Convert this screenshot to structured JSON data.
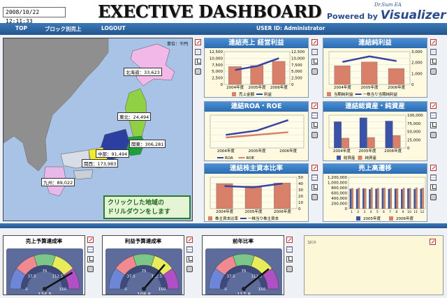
{
  "header": {
    "datetime": "2008/10/22 12:11:33",
    "title": "EXECTIVE DASHBOARD",
    "brand_product": "Dr.Sum EA",
    "brand_prefix": "Powered by",
    "brand_name": "Visualizer"
  },
  "nav": {
    "top": "TOP",
    "block": "ブロック別売上",
    "logout": "LOGOUT",
    "user": "USER ID: Administrator"
  },
  "map": {
    "unit": "単位：千円",
    "regions": [
      {
        "label": "北海道：33,623"
      },
      {
        "label": "東北：24,494"
      },
      {
        "label": "関東：306,281"
      },
      {
        "label": "中部：91,494"
      },
      {
        "label": "関西：173,983"
      },
      {
        "label": "九州：89,022"
      }
    ],
    "drill_line1": "クリックした地域の",
    "drill_line2": "ドリルダウンをします"
  },
  "colors": {
    "map_sea": "#a9c3e6",
    "panel_bg": "#fffadf",
    "title_blue": "#2c6bb0",
    "bar_orange": "#d9806a",
    "bar_blue": "#3a52a8",
    "line_blue": "#3844a0",
    "line_orange": "#d9806a"
  },
  "chart_data": [
    {
      "type": "bar",
      "title": "連結売上 経営利益",
      "categories": [
        "2004年度",
        "2005年度",
        "2006年度"
      ],
      "series": [
        {
          "name": "売上金額",
          "type": "bar",
          "values": [
            6800,
            7200,
            8800
          ]
        },
        {
          "name": "利益",
          "type": "line",
          "values": [
            5500,
            7000,
            10000
          ]
        }
      ],
      "left_ticks": [
        "12,500",
        "10,000",
        "7,500",
        "5,000",
        "2,500",
        "0"
      ],
      "right_ticks": [
        "12,500",
        "10,000",
        "7,500",
        "5,000",
        "2,500",
        "0"
      ],
      "ylim": [
        0,
        12500
      ]
    },
    {
      "type": "bar",
      "title": "連結純利益",
      "categories": [
        "2004年度",
        "2005年度",
        "2006年度"
      ],
      "series": [
        {
          "name": "当期純利益",
          "type": "bar",
          "values": [
            2000,
            2400,
            1700
          ]
        },
        {
          "name": "一株当り当期純利益",
          "type": "line",
          "values": [
            2400,
            3000,
            2500
          ]
        }
      ],
      "right_ticks": [
        "3,000",
        "2,000",
        "1,000",
        "0"
      ],
      "ylim": [
        0,
        3500
      ]
    },
    {
      "type": "line",
      "title": "連結ROA・ROE",
      "categories": [
        "2004年度",
        "2005年度",
        "2006年度"
      ],
      "series": [
        {
          "name": "ROA",
          "values": [
            4.0,
            5.3,
            8.5
          ]
        },
        {
          "name": "ROE",
          "values": [
            3.2,
            4.0,
            4.8
          ]
        }
      ],
      "ylim": [
        0,
        10
      ]
    },
    {
      "type": "bar",
      "title": "連結総資産・純資産",
      "categories": [
        "2004年度",
        "2005年度",
        "2006年度"
      ],
      "series": [
        {
          "name": "総資産",
          "values": [
            80000,
            92000,
            82000
          ]
        },
        {
          "name": "純資産",
          "values": [
            30000,
            32000,
            38000
          ]
        }
      ],
      "right_ticks": [
        "100,000",
        "75,000",
        "50,000",
        "25,000",
        "0"
      ],
      "ylim": [
        0,
        100000
      ]
    },
    {
      "type": "bar",
      "title": "連結株主資本比率",
      "categories": [
        "2004年度",
        "2005年度",
        "2006年度"
      ],
      "series": [
        {
          "name": "株主資本比率",
          "type": "bar",
          "values": [
            40,
            36,
            41
          ]
        },
        {
          "name": "一株当り株主資本",
          "type": "line",
          "values": [
            36,
            34,
            40
          ]
        }
      ],
      "right_ticks": [
        "50",
        "40",
        "30",
        "20",
        "10",
        "0"
      ],
      "ylim": [
        0,
        50
      ]
    },
    {
      "type": "bar",
      "title": "売上高遷移",
      "categories": [
        "1",
        "2",
        "3",
        "4",
        "5",
        "6",
        "7",
        "8",
        "9",
        "10",
        "11",
        "12"
      ],
      "series": [
        {
          "name": "2005年度",
          "values": [
            760000,
            750000,
            770000,
            740000,
            760000,
            780000,
            750000,
            760000,
            740000,
            770000,
            750000,
            760000
          ]
        },
        {
          "name": "2006年度",
          "values": [
            780000,
            790000,
            770000,
            800000,
            780000,
            790000,
            780000,
            770000,
            790000,
            780000,
            800000,
            790000
          ]
        }
      ],
      "left_ticks": [
        "1,200,000",
        "1,000,000",
        "800,000",
        "600,000",
        "400,000",
        "200,000",
        "0"
      ],
      "ylim": [
        0,
        1200000
      ]
    }
  ],
  "gauges": [
    {
      "title": "売上予算達成率",
      "value": "124.5",
      "ticks": [
        "0",
        "37.5",
        "75",
        "112.5",
        "150"
      ],
      "level": 124.5
    },
    {
      "title": "利益予算達成率",
      "value": "108.8",
      "ticks": [
        "0",
        "37.5",
        "75",
        "112.5",
        "150"
      ],
      "level": 108.8
    },
    {
      "title": "前年比率",
      "value": "117.8",
      "ticks": [
        "0",
        "37.5",
        "75",
        "112.5",
        "150"
      ],
      "level": 117.8
    }
  ],
  "comment": {
    "label": "ｺﾒﾝﾄ"
  }
}
